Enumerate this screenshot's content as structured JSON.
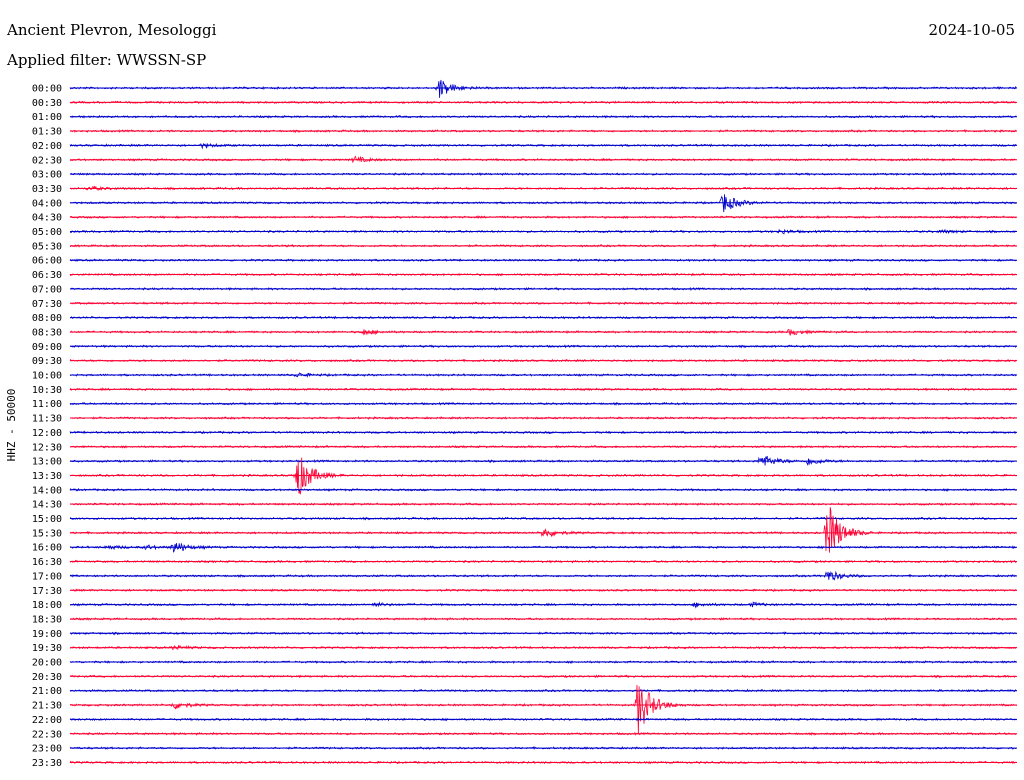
{
  "header": {
    "station": "Ancient Plevron, Mesologgi",
    "filter": "Applied filter: WWSSN-SP",
    "date": "2024-10-05"
  },
  "chart_data": {
    "type": "helicorder",
    "ylabel": "HHZ - 50000",
    "row_minutes": 30,
    "colors": [
      "#0000cc",
      "#ff0033"
    ],
    "rows": [
      {
        "label": "00:00",
        "events": [
          {
            "t": 0.39,
            "a": 10
          }
        ]
      },
      {
        "label": "00:30",
        "events": []
      },
      {
        "label": "01:00",
        "events": []
      },
      {
        "label": "01:30",
        "events": []
      },
      {
        "label": "02:00",
        "events": [
          {
            "t": 0.14,
            "a": 2
          }
        ]
      },
      {
        "label": "02:30",
        "events": [
          {
            "t": 0.3,
            "a": 3
          }
        ]
      },
      {
        "label": "03:00",
        "events": []
      },
      {
        "label": "03:30",
        "events": [
          {
            "t": 0.02,
            "a": 2
          }
        ]
      },
      {
        "label": "04:00",
        "events": [
          {
            "t": 0.69,
            "a": 10
          }
        ]
      },
      {
        "label": "04:30",
        "events": []
      },
      {
        "label": "05:00",
        "events": [
          {
            "t": 0.75,
            "a": 2
          },
          {
            "t": 0.92,
            "a": 1.5
          }
        ]
      },
      {
        "label": "05:30",
        "events": []
      },
      {
        "label": "06:00",
        "events": []
      },
      {
        "label": "06:30",
        "events": []
      },
      {
        "label": "07:00",
        "events": []
      },
      {
        "label": "07:30",
        "events": []
      },
      {
        "label": "08:00",
        "events": []
      },
      {
        "label": "08:30",
        "events": [
          {
            "t": 0.31,
            "a": 3
          },
          {
            "t": 0.76,
            "a": 3
          }
        ]
      },
      {
        "label": "09:00",
        "events": []
      },
      {
        "label": "09:30",
        "events": []
      },
      {
        "label": "10:00",
        "events": [
          {
            "t": 0.24,
            "a": 2
          }
        ]
      },
      {
        "label": "10:30",
        "events": []
      },
      {
        "label": "11:00",
        "events": []
      },
      {
        "label": "11:30",
        "events": []
      },
      {
        "label": "12:00",
        "events": []
      },
      {
        "label": "12:30",
        "events": []
      },
      {
        "label": "13:00",
        "events": [
          {
            "t": 0.73,
            "a": 7
          },
          {
            "t": 0.78,
            "a": 4
          }
        ]
      },
      {
        "label": "13:30",
        "events": [
          {
            "t": 0.24,
            "a": 25
          }
        ]
      },
      {
        "label": "14:00",
        "events": []
      },
      {
        "label": "14:30",
        "events": []
      },
      {
        "label": "15:00",
        "events": []
      },
      {
        "label": "15:30",
        "events": [
          {
            "t": 0.5,
            "a": 5
          },
          {
            "t": 0.8,
            "a": 32
          }
        ]
      },
      {
        "label": "16:00",
        "events": [
          {
            "t": 0.04,
            "a": 2
          },
          {
            "t": 0.08,
            "a": 2
          },
          {
            "t": 0.11,
            "a": 6
          }
        ]
      },
      {
        "label": "16:30",
        "events": []
      },
      {
        "label": "17:00",
        "events": [
          {
            "t": 0.8,
            "a": 6
          }
        ]
      },
      {
        "label": "17:30",
        "events": []
      },
      {
        "label": "18:00",
        "events": [
          {
            "t": 0.32,
            "a": 2
          },
          {
            "t": 0.66,
            "a": 2
          },
          {
            "t": 0.72,
            "a": 2
          }
        ]
      },
      {
        "label": "18:30",
        "events": []
      },
      {
        "label": "19:00",
        "events": []
      },
      {
        "label": "19:30",
        "events": [
          {
            "t": 0.11,
            "a": 2
          }
        ]
      },
      {
        "label": "20:00",
        "events": []
      },
      {
        "label": "20:30",
        "events": []
      },
      {
        "label": "21:00",
        "events": []
      },
      {
        "label": "21:30",
        "events": [
          {
            "t": 0.11,
            "a": 4
          },
          {
            "t": 0.6,
            "a": 30
          }
        ]
      },
      {
        "label": "22:00",
        "events": []
      },
      {
        "label": "22:30",
        "events": []
      },
      {
        "label": "23:00",
        "events": []
      },
      {
        "label": "23:30",
        "events": []
      }
    ]
  }
}
